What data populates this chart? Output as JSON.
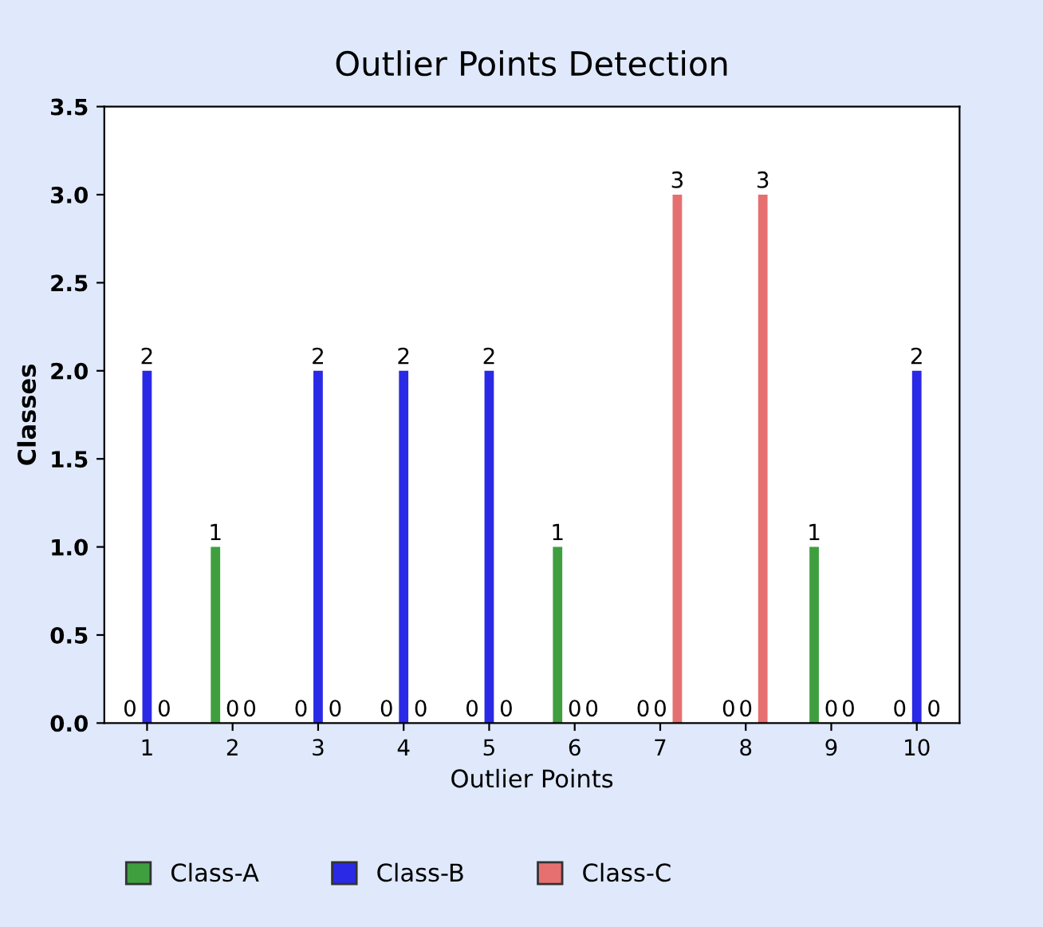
{
  "chart_data": {
    "type": "bar",
    "title": "Outlier Points Detection",
    "xlabel": "Outlier Points",
    "ylabel": "Classes",
    "categories": [
      "1",
      "2",
      "3",
      "4",
      "5",
      "6",
      "7",
      "8",
      "9",
      "10"
    ],
    "series": [
      {
        "name": "Class-A",
        "color": "#3f9f3f",
        "values": [
          0,
          1,
          0,
          0,
          0,
          1,
          0,
          0,
          1,
          0
        ]
      },
      {
        "name": "Class-B",
        "color": "#2a2ae6",
        "values": [
          2,
          0,
          2,
          2,
          2,
          0,
          0,
          0,
          0,
          2
        ]
      },
      {
        "name": "Class-C",
        "color": "#e67070",
        "values": [
          0,
          0,
          0,
          0,
          0,
          0,
          3,
          3,
          0,
          0
        ]
      }
    ],
    "ylim": [
      0,
      3.5
    ],
    "yticks": [
      {
        "value": 0,
        "label": "0.0"
      },
      {
        "value": 0.5,
        "label": "0.5"
      },
      {
        "value": 1,
        "label": "1.0"
      },
      {
        "value": 1.5,
        "label": "1.5"
      },
      {
        "value": 2,
        "label": "2.0"
      },
      {
        "value": 2.5,
        "label": "2.5"
      },
      {
        "value": 3,
        "label": "3.0"
      },
      {
        "value": 3.5,
        "label": "3.5"
      }
    ],
    "data_labels": true,
    "grid": false,
    "legend": "bottom"
  }
}
